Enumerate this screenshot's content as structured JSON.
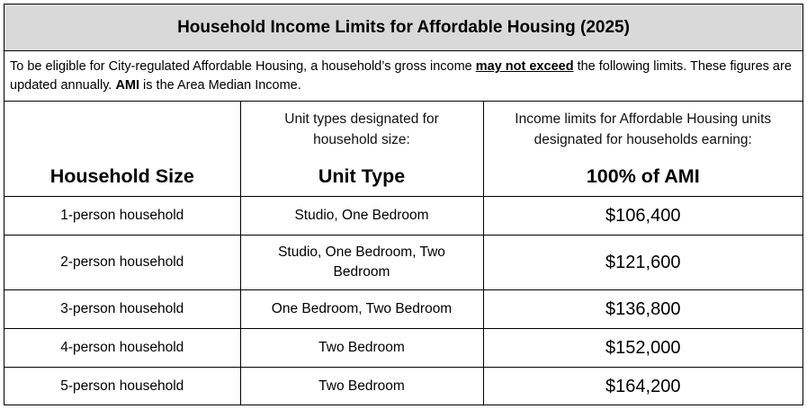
{
  "title": "Household Income Limits for Affordable Housing (2025)",
  "intro": {
    "part1": "To be eligible for City-regulated Affordable Housing, a household’s gross income ",
    "emphasis": "may not exceed",
    "part2": " the following limits. These figures are updated annually.  ",
    "ami_term": "AMI",
    "part3": " is the Area Median Income."
  },
  "table": {
    "headers": {
      "household_size": {
        "description": "",
        "title": "Household Size"
      },
      "unit_type": {
        "description": "Unit types designated for household size:",
        "title": "Unit Type"
      },
      "income_limit": {
        "description": "Income limits for Affordable Housing units designated for households earning:",
        "title": "100% of AMI"
      }
    },
    "rows": [
      {
        "size": "1-person household",
        "unit": "Studio, One Bedroom",
        "income": "$106,400"
      },
      {
        "size": "2-person household",
        "unit": "Studio, One Bedroom, Two Bedroom",
        "income": "$121,600"
      },
      {
        "size": "3-person household",
        "unit": "One Bedroom, Two Bedroom",
        "income": "$136,800"
      },
      {
        "size": "4-person household",
        "unit": "Two Bedroom",
        "income": "$152,000"
      },
      {
        "size": "5-person household",
        "unit": "Two Bedroom",
        "income": "$164,200"
      }
    ]
  }
}
